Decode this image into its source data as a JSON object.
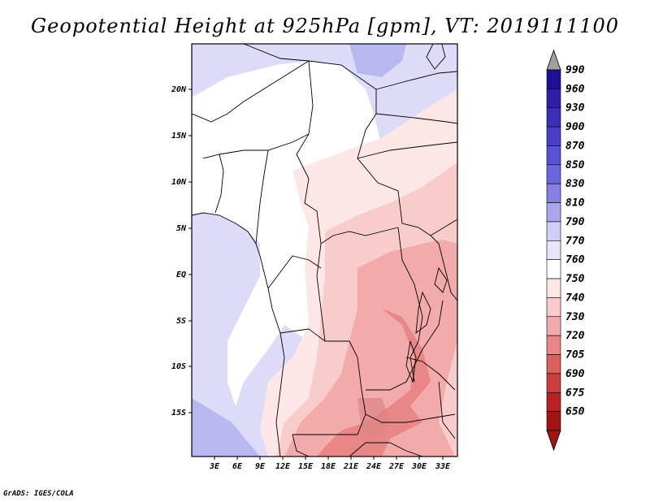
{
  "title": "Geopotential Height at 925hPa [gpm], VT: 2019111100",
  "footer": "GrADS: IGES/COLA",
  "map": {
    "lat_ticks": [
      "20N",
      "15N",
      "10N",
      "5N",
      "EQ",
      "5S",
      "10S",
      "15S"
    ],
    "lon_ticks": [
      "3E",
      "6E",
      "9E",
      "12E",
      "15E",
      "18E",
      "21E",
      "24E",
      "27E",
      "30E",
      "33E"
    ]
  },
  "colorbar": {
    "levels": [
      "990",
      "960",
      "930",
      "900",
      "870",
      "850",
      "830",
      "810",
      "790",
      "770",
      "760",
      "750",
      "740",
      "730",
      "720",
      "705",
      "690",
      "675",
      "650"
    ],
    "colors": [
      "#1f0f94",
      "#2e1fa8",
      "#3b30b8",
      "#4a40c8",
      "#5a52d4",
      "#6b66dc",
      "#8580e3",
      "#a8a6ec",
      "#cfcff5",
      "#e6e6fa",
      "#ffffff",
      "#fde6e6",
      "#f9cccc",
      "#f2aaaa",
      "#e98686",
      "#dc5f5f",
      "#cc3d3d",
      "#b82222",
      "#a01414"
    ],
    "top_arrow_color": "#a0a0a0"
  },
  "colors": {
    "land_white": "#ffffff",
    "sea_blue": "#dcdcf8"
  }
}
